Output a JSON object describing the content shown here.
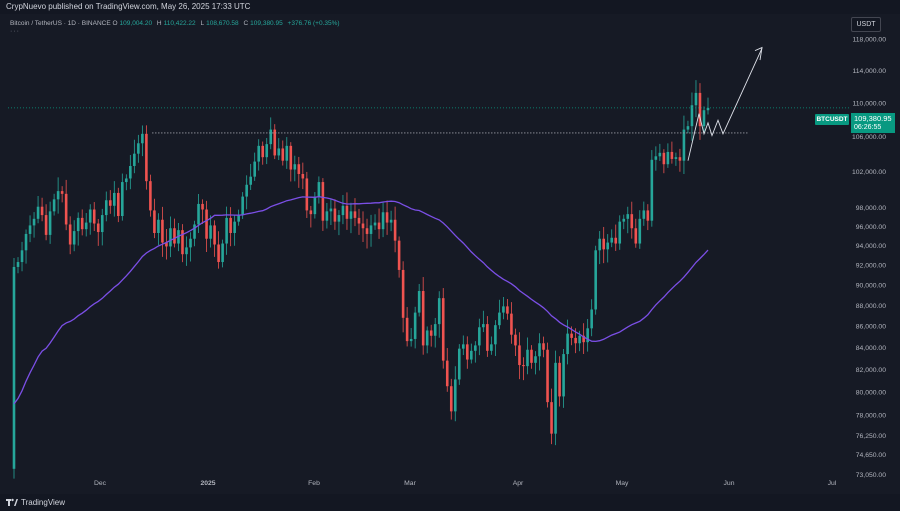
{
  "header": {
    "published_by": "CrypNuevo published on TradingView.com, May 26, 2025 17:33 UTC"
  },
  "legend": {
    "symbol_line": "Bitcoin / TetherUS · 1D · BINANCE",
    "ohlc": [
      {
        "label": "O",
        "value": "109,004.20"
      },
      {
        "label": "H",
        "value": "110,422.22"
      },
      {
        "label": "L",
        "value": "108,670.58"
      },
      {
        "label": "C",
        "value": "109,380.95"
      }
    ],
    "change": "+376.76 (+0.35%)",
    "more_indicator": "···"
  },
  "toolbar": {
    "currency_button": "USDT"
  },
  "price_tag": {
    "symbol": "BTCUSDT",
    "price": "109,380.95",
    "countdown": "06:26:55",
    "color": "#089981"
  },
  "footer": {
    "brand": "TradingView"
  },
  "colors": {
    "background": "#161a25",
    "up_candle": "#26a69a",
    "down_candle": "#ef5350",
    "ma_line": "#7b4fe6",
    "axis_text": "#b2b5be"
  },
  "chart_data": {
    "type": "candlestick",
    "title": "",
    "y_scale": "log",
    "ylim": [
      72500,
      122000
    ],
    "y_ticks": [
      "118,000.00",
      "114,000.00",
      "110,000.00",
      "106,000.00",
      "102,000.00",
      "98,000.00",
      "96,000.00",
      "94,000.00",
      "92,000.00",
      "90,000.00",
      "88,000.00",
      "86,000.00",
      "84,000.00",
      "82,000.00",
      "80,000.00",
      "78,000.00",
      "76,250.00",
      "74,650.00",
      "73,050.00"
    ],
    "x_ticks": [
      "Dec",
      "2025",
      "Feb",
      "Mar",
      "Apr",
      "May",
      "Jun",
      "Jul"
    ],
    "resistance_level": 106400,
    "candles_daily_close": [
      91800,
      92300,
      93500,
      95200,
      96100,
      96800,
      98100,
      97200,
      95100,
      97600,
      98900,
      99800,
      99500,
      96200,
      94100,
      95500,
      96900,
      95700,
      96400,
      97800,
      96300,
      95400,
      97200,
      98800,
      98200,
      99600,
      97100,
      100800,
      101200,
      102600,
      104000,
      105200,
      106300,
      100900,
      97700,
      95300,
      96700,
      94300,
      93900,
      95800,
      94200,
      95600,
      93100,
      93800,
      94700,
      96200,
      98400,
      97800,
      94700,
      96100,
      94100,
      92300,
      94200,
      96900,
      95300,
      96500,
      97200,
      99200,
      100500,
      101400,
      103100,
      104900,
      103600,
      105100,
      106800,
      103800,
      104600,
      103200,
      104900,
      102200,
      102800,
      101700,
      101200,
      97700,
      97300,
      99200,
      100800,
      96600,
      97600,
      97900,
      96500,
      97200,
      98200,
      96800,
      97600,
      96900,
      96300,
      95800,
      95200,
      96100,
      96400,
      95700,
      97500,
      96400,
      96700,
      94500,
      91500,
      86800,
      84600,
      84800,
      87300,
      89400,
      84200,
      85600,
      85100,
      86200,
      88700,
      82800,
      80500,
      78300,
      81100,
      83900,
      84300,
      82900,
      83700,
      84200,
      85900,
      86200,
      83700,
      84300,
      86100,
      87300,
      87900,
      87200,
      85200,
      84200,
      82400,
      82300,
      83800,
      82600,
      83200,
      84400,
      83800,
      79100,
      76400,
      82600,
      79600,
      83400,
      85300,
      84900,
      84400,
      85100,
      84500,
      85800,
      87600,
      93500,
      94700,
      93600,
      94300,
      94800,
      94200,
      96500,
      96800,
      97300,
      95800,
      94200,
      96800,
      97700,
      96600,
      103300,
      103700,
      104100,
      102800,
      104200,
      103400,
      103600,
      103200,
      106800,
      107200,
      109700,
      111200,
      107200,
      109100,
      109380
    ]
  }
}
